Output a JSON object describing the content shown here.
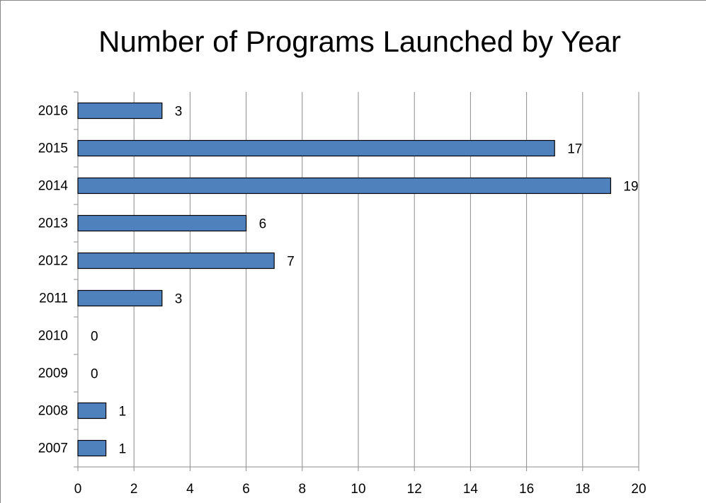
{
  "chart_data": {
    "type": "bar",
    "orientation": "horizontal",
    "title": "Number of Programs Launched by Year",
    "categories": [
      "2007",
      "2008",
      "2009",
      "2010",
      "2011",
      "2012",
      "2013",
      "2014",
      "2015",
      "2016"
    ],
    "values": [
      1,
      1,
      0,
      0,
      3,
      7,
      6,
      19,
      17,
      3
    ],
    "color": "#4f81bd",
    "xlim": [
      0,
      20
    ],
    "xticks": [
      0,
      2,
      4,
      6,
      8,
      10,
      12,
      14,
      16,
      18,
      20
    ],
    "grid": true
  }
}
